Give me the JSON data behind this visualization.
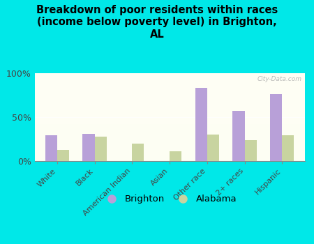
{
  "categories": [
    "White",
    "Black",
    "American Indian",
    "Asian",
    "Other race",
    "2+ races",
    "Hispanic"
  ],
  "brighton": [
    29,
    31,
    0,
    0,
    83,
    57,
    76
  ],
  "alabama": [
    13,
    28,
    20,
    11,
    30,
    24,
    29
  ],
  "brighton_color": "#b8a0d8",
  "alabama_color": "#c8d4a0",
  "title": "Breakdown of poor residents within races\n(income below poverty level) in Brighton,\nAL",
  "title_fontsize": 10.5,
  "bg_outer": "#00e8e8",
  "ylim": [
    0,
    100
  ],
  "yticks": [
    0,
    50,
    100
  ],
  "ytick_labels": [
    "0%",
    "50%",
    "100%"
  ],
  "bar_width": 0.32,
  "watermark": "City-Data.com",
  "legend_brighton": "Brighton",
  "legend_alabama": "Alabama"
}
